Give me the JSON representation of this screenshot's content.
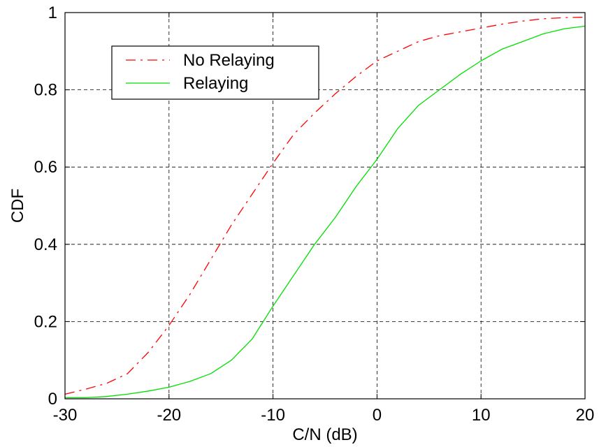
{
  "chart_data": {
    "type": "line",
    "title": "",
    "xlabel": "C/N (dB)",
    "ylabel": "CDF",
    "xlim": [
      -30,
      20
    ],
    "ylim": [
      0,
      1
    ],
    "xticks": [
      -30,
      -20,
      -10,
      0,
      10,
      20
    ],
    "xtick_labels": [
      "-30",
      "-20",
      "-10",
      "0",
      "10",
      "20"
    ],
    "yticks": [
      0,
      0.2,
      0.4,
      0.6,
      0.8,
      1
    ],
    "ytick_labels": [
      "0",
      "0.2",
      "0.4",
      "0.6",
      "0.8",
      "1"
    ],
    "grid": true,
    "grid_style": "dashed",
    "legend_position": "upper-left",
    "series": [
      {
        "name": "No Relaying",
        "color": "#ff0000",
        "line_style": "dashdot",
        "x": [
          -30,
          -28,
          -26,
          -24,
          -22,
          -20,
          -18,
          -16,
          -14,
          -12,
          -10,
          -8,
          -6,
          -4,
          -2,
          0,
          2,
          4,
          6,
          8,
          10,
          12,
          14,
          16,
          18,
          20
        ],
        "y": [
          0.012,
          0.025,
          0.04,
          0.065,
          0.12,
          0.19,
          0.27,
          0.36,
          0.45,
          0.53,
          0.61,
          0.685,
          0.74,
          0.79,
          0.835,
          0.875,
          0.9,
          0.925,
          0.94,
          0.95,
          0.96,
          0.97,
          0.978,
          0.984,
          0.987,
          0.988
        ]
      },
      {
        "name": "Relaying",
        "color": "#00e000",
        "line_style": "solid",
        "x": [
          -30,
          -28,
          -26,
          -24,
          -22,
          -20,
          -18,
          -16,
          -14,
          -12,
          -10,
          -8,
          -6,
          -4,
          -2,
          0,
          2,
          4,
          6,
          8,
          10,
          12,
          14,
          16,
          18,
          20
        ],
        "y": [
          0.003,
          0.003,
          0.006,
          0.012,
          0.02,
          0.03,
          0.045,
          0.065,
          0.1,
          0.155,
          0.24,
          0.32,
          0.4,
          0.47,
          0.55,
          0.62,
          0.7,
          0.76,
          0.8,
          0.84,
          0.875,
          0.905,
          0.925,
          0.945,
          0.958,
          0.965
        ]
      }
    ]
  }
}
